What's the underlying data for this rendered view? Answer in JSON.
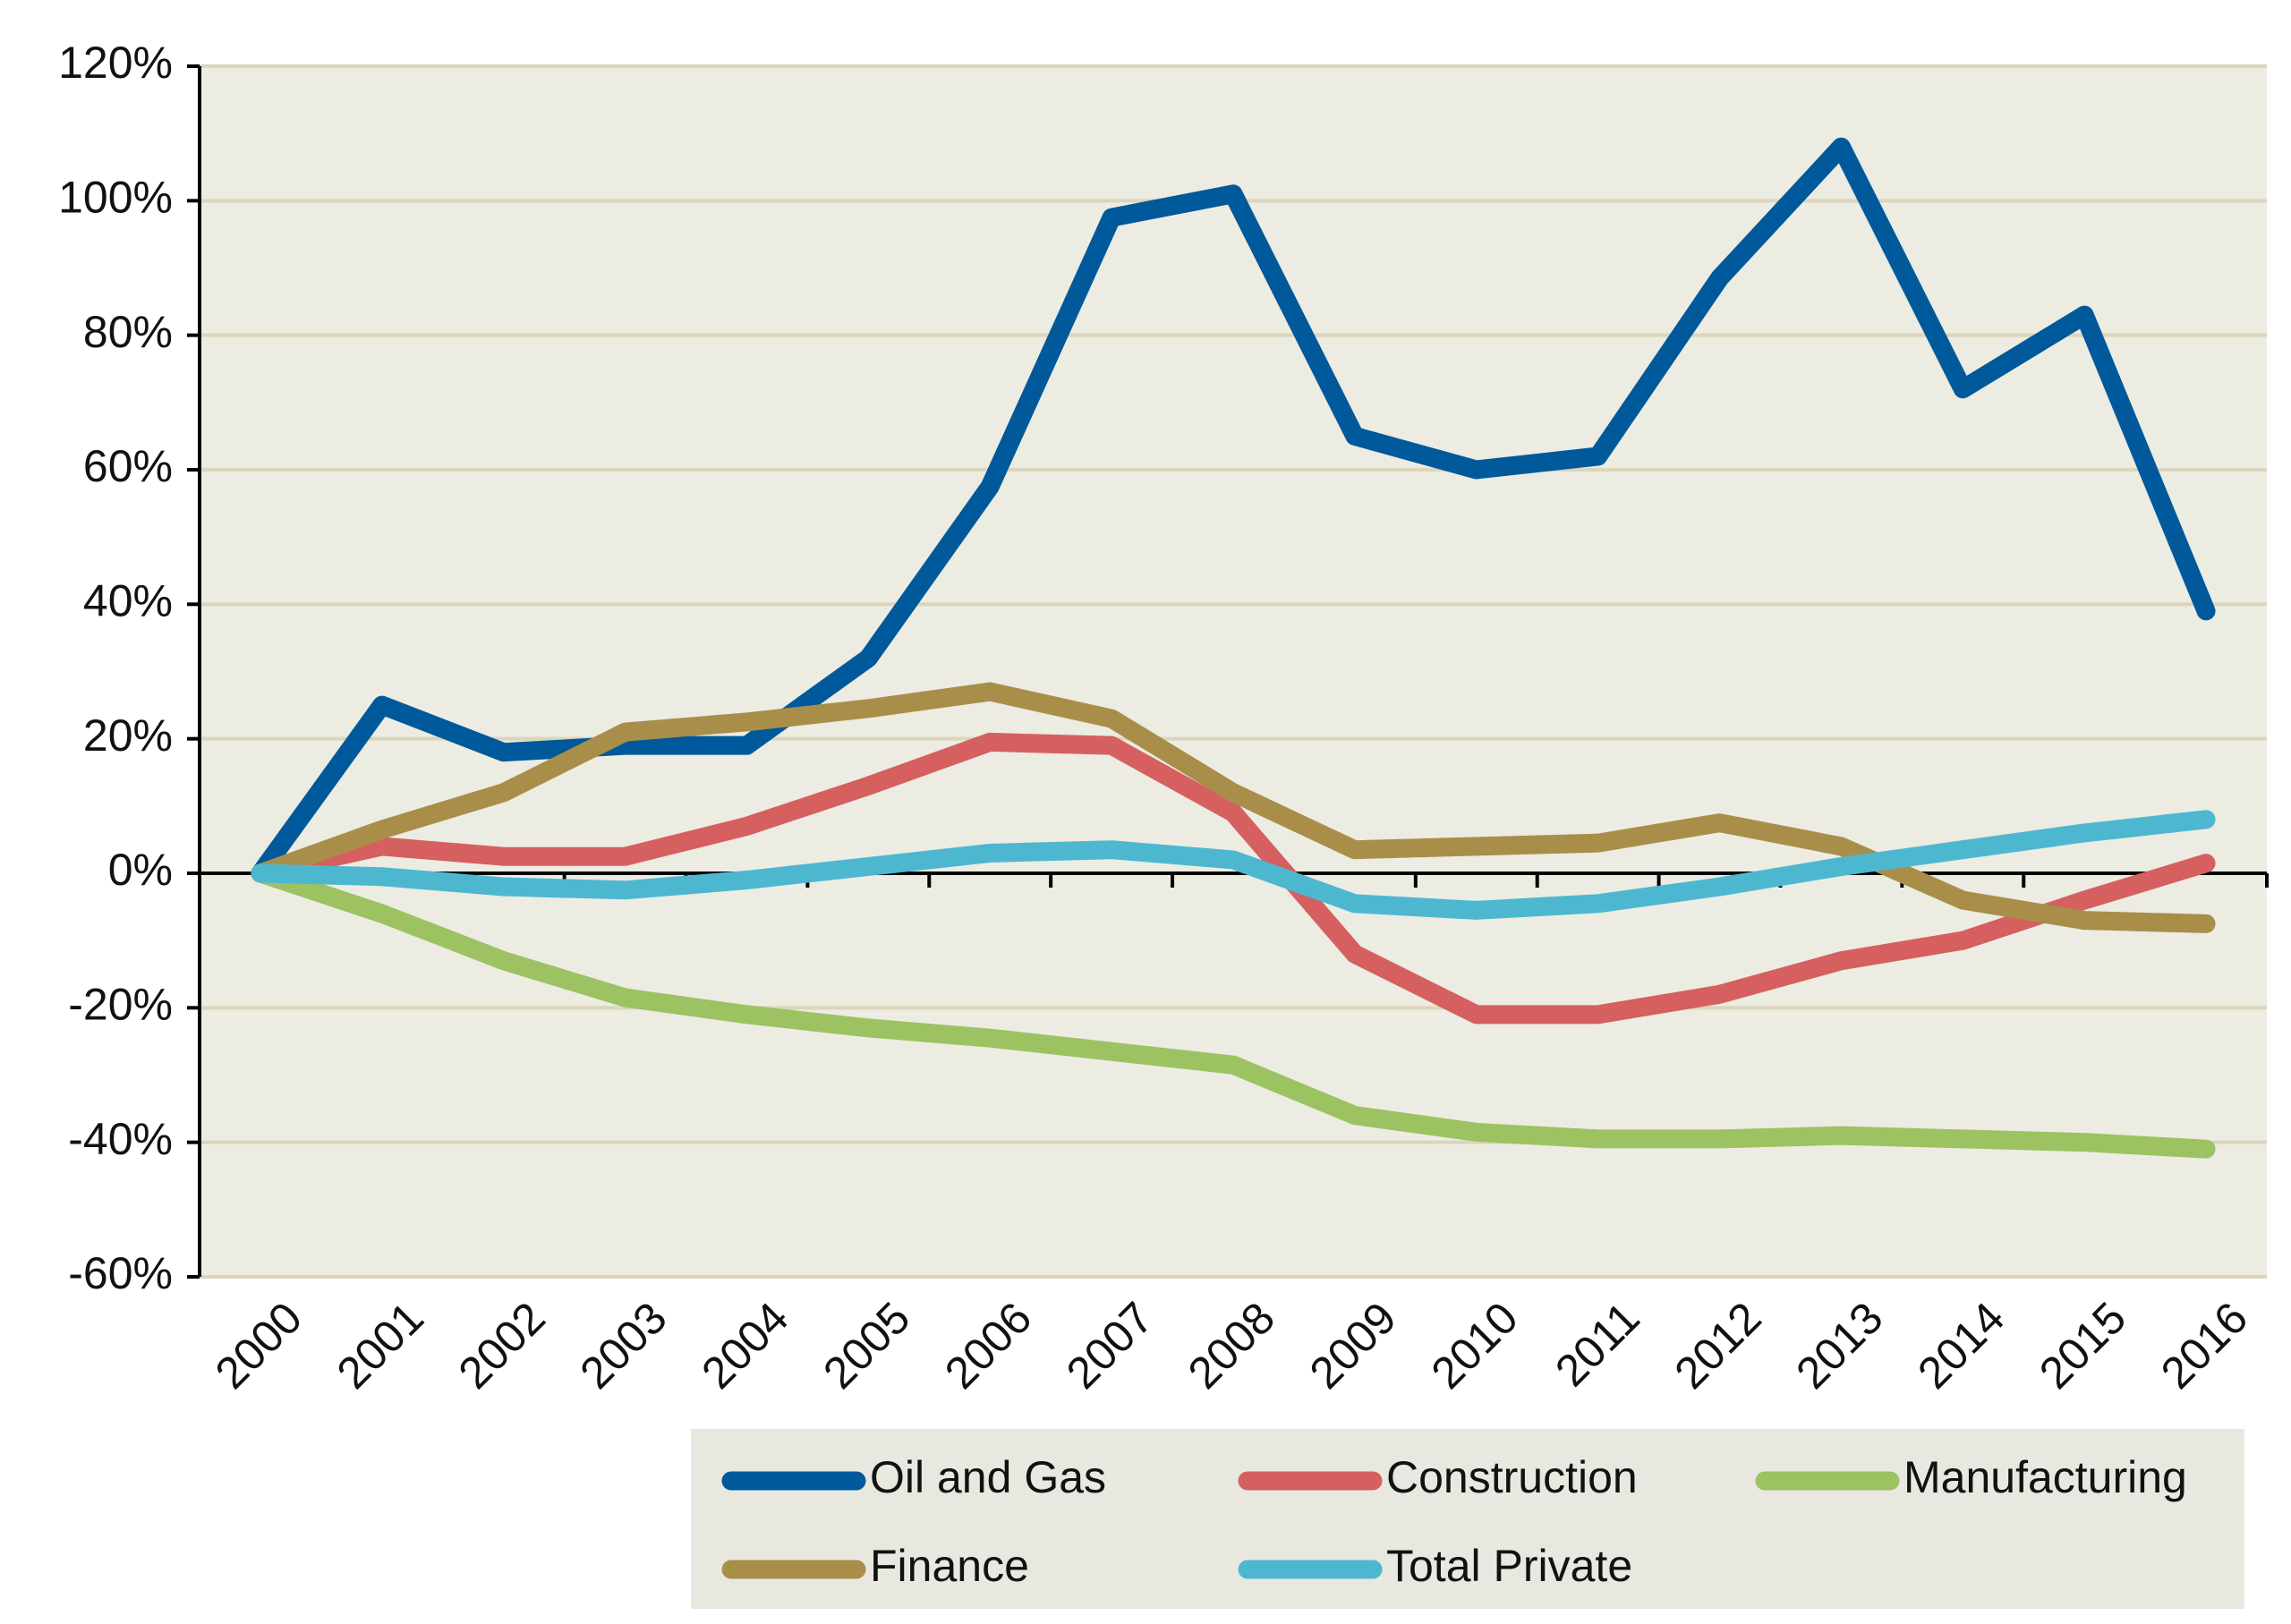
{
  "chart_data": {
    "type": "line",
    "categories": [
      "2000",
      "2001",
      "2002",
      "2003",
      "2004",
      "2005",
      "2006",
      "2007",
      "2008",
      "2009",
      "2010",
      "2011",
      "2012",
      "2013",
      "2014",
      "2015",
      "2016"
    ],
    "series": [
      {
        "name": "Oil and Gas",
        "color": "#00599a",
        "values": [
          0,
          25,
          18,
          19,
          19,
          32,
          57.5,
          97.5,
          101,
          65,
          60,
          62,
          88.5,
          108,
          72,
          83,
          39
        ]
      },
      {
        "name": "Construction",
        "color": "#d65f5f",
        "values": [
          0,
          4,
          2.5,
          2.5,
          7,
          13,
          19.5,
          19,
          9,
          -12,
          -21,
          -21,
          -18,
          -13,
          -10,
          -4,
          1.5
        ]
      },
      {
        "name": "Manufacturing",
        "color": "#9cc262",
        "values": [
          0,
          -6,
          -13,
          -18.5,
          -21,
          -23,
          -24.5,
          -26.5,
          -28.5,
          -36,
          -38.5,
          -39.5,
          -39.5,
          -39,
          -39.5,
          -40,
          -41
        ]
      },
      {
        "name": "Finance",
        "color": "#a98e4a",
        "values": [
          0,
          6.5,
          12,
          21,
          22.5,
          24.5,
          27,
          23,
          12,
          3.5,
          4,
          4.5,
          7.5,
          4,
          -4,
          -7,
          -7.5
        ]
      },
      {
        "name": "Total Private",
        "color": "#4eb7d0",
        "values": [
          0,
          -0.5,
          -2,
          -2.5,
          -1,
          1,
          3,
          3.5,
          2,
          -4.5,
          -5.5,
          -4.5,
          -2,
          1,
          3.5,
          6,
          8
        ]
      }
    ],
    "ylim": [
      -60,
      120
    ],
    "yticks": [
      {
        "value": -60,
        "label": "-60%"
      },
      {
        "value": -40,
        "label": "-40%"
      },
      {
        "value": -20,
        "label": "-20%"
      },
      {
        "value": 0,
        "label": "0%"
      },
      {
        "value": 20,
        "label": "20%"
      },
      {
        "value": 40,
        "label": "40%"
      },
      {
        "value": 60,
        "label": "60%"
      },
      {
        "value": 80,
        "label": "80%"
      },
      {
        "value": 100,
        "label": "100%"
      },
      {
        "value": 120,
        "label": "120%"
      }
    ],
    "grid": true,
    "legend": "bottom"
  }
}
